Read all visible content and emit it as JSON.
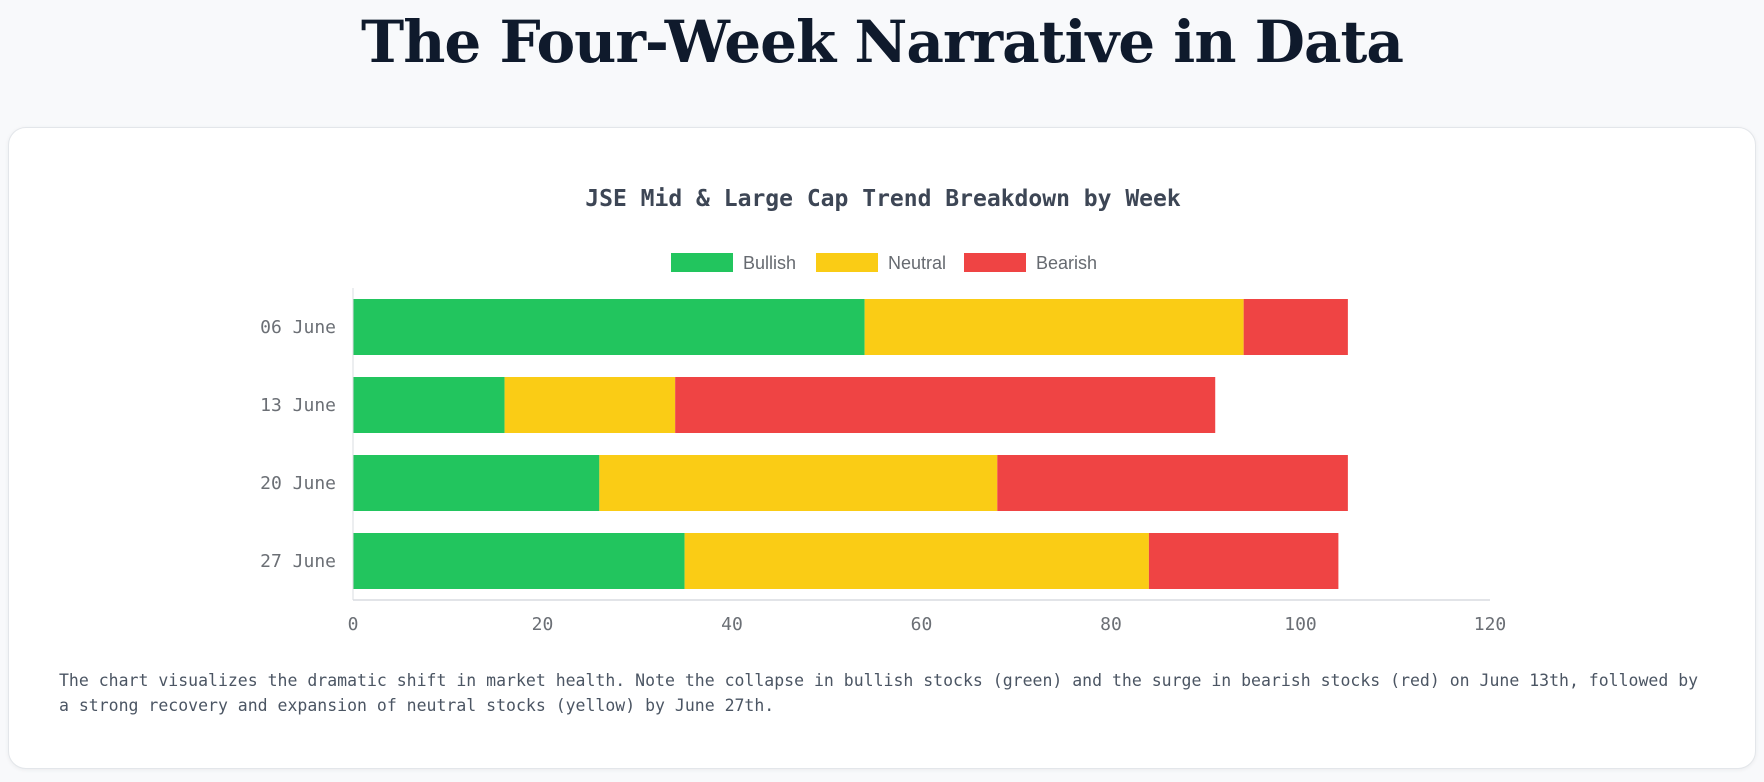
{
  "page": {
    "title": "The Four-Week Narrative in Data"
  },
  "chart_data": {
    "type": "bar",
    "orientation": "horizontal",
    "stacked": true,
    "title": "JSE Mid & Large Cap Trend Breakdown by Week",
    "categories": [
      "06 June",
      "13 June",
      "20 June",
      "27 June"
    ],
    "series": [
      {
        "name": "Bullish",
        "color": "#22c55e",
        "values": [
          54,
          16,
          26,
          35
        ]
      },
      {
        "name": "Neutral",
        "color": "#facc15",
        "values": [
          40,
          18,
          42,
          49
        ]
      },
      {
        "name": "Bearish",
        "color": "#ef4444",
        "values": [
          11,
          57,
          37,
          20
        ]
      }
    ],
    "xlim": [
      0,
      120
    ],
    "xticks": [
      "0",
      "20",
      "40",
      "60",
      "80",
      "100",
      "120"
    ],
    "xlabel": "",
    "ylabel": "",
    "legend": "top-center",
    "grid": false
  },
  "caption": "The chart visualizes the dramatic shift in market health. Note the collapse in bullish stocks (green) and the surge in bearish stocks (red) on June 13th, followed by a strong recovery and expansion of neutral stocks (yellow) by June 27th."
}
